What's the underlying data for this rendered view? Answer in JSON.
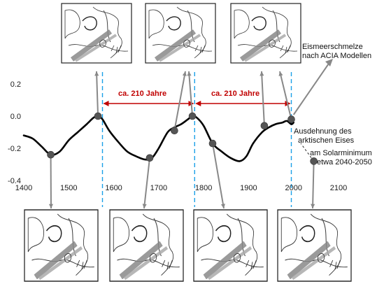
{
  "chart_data": {
    "type": "line",
    "title": "",
    "xlabel": "",
    "ylabel": "",
    "xlim": [
      1400,
      2100
    ],
    "ylim": [
      -0.4,
      0.2
    ],
    "x_ticks": [
      "1400",
      "1500",
      "1600",
      "1700",
      "1800",
      "1900",
      "2000",
      "2100"
    ],
    "y_ticks": [
      "0.2",
      "0.0",
      "-0.2",
      "-0.4"
    ],
    "grid": false,
    "series": [
      {
        "x": [
          1400,
          1420,
          1440,
          1460,
          1480,
          1500,
          1520,
          1540,
          1555,
          1565,
          1575,
          1590,
          1610,
          1630,
          1650,
          1670,
          1685,
          1700,
          1720,
          1735,
          1750,
          1765,
          1775,
          1785,
          1800,
          1820,
          1840,
          1860,
          1880,
          1895,
          1910,
          1930,
          1945,
          1960,
          1975,
          1985,
          1995,
          2000
        ],
        "values": [
          -0.12,
          -0.14,
          -0.19,
          -0.24,
          -0.22,
          -0.15,
          -0.1,
          -0.05,
          -0.01,
          0.0,
          -0.02,
          -0.09,
          -0.16,
          -0.22,
          -0.25,
          -0.27,
          -0.26,
          -0.2,
          -0.1,
          -0.07,
          -0.05,
          -0.02,
          0.0,
          -0.01,
          -0.06,
          -0.17,
          -0.22,
          -0.26,
          -0.28,
          -0.25,
          -0.17,
          -0.1,
          -0.07,
          -0.05,
          -0.04,
          -0.03,
          -0.05,
          -0.04
        ]
      }
    ],
    "marker_points": [
      {
        "x": 1460,
        "y": -0.24
      },
      {
        "x": 1565,
        "y": 0.0
      },
      {
        "x": 1680,
        "y": -0.26
      },
      {
        "x": 1735,
        "y": -0.09
      },
      {
        "x": 1775,
        "y": 0.0
      },
      {
        "x": 1820,
        "y": -0.17
      },
      {
        "x": 1935,
        "y": -0.06
      },
      {
        "x": 1995,
        "y": -0.02
      },
      {
        "x": 2045,
        "y": -0.28
      }
    ],
    "vertical_markers": [
      1575,
      1780,
      1995
    ],
    "periods": [
      {
        "from": 1575,
        "to": 1780,
        "label": "ca. 210 Jahre"
      },
      {
        "from": 1780,
        "to": 1995,
        "label": "ca. 210 Jahre"
      }
    ],
    "annotations": [
      {
        "lines": [
          "Eismeerschmelze",
          "nach ACIA Modellen"
        ]
      },
      {
        "lines": [
          "Ausdehnung des",
          "arktischen Eises",
          "am Solarminimum",
          "etwa 2040-2050"
        ]
      }
    ]
  },
  "map_panels": {
    "top": [
      "glacier-map-top-1",
      "glacier-map-top-2",
      "glacier-map-top-3"
    ],
    "bottom": [
      "ice-extent-map-bottom-1",
      "ice-extent-map-bottom-2",
      "ice-extent-map-bottom-3",
      "ice-extent-map-bottom-4"
    ]
  },
  "colors": {
    "line": "#000000",
    "marker": "#555555",
    "connector": "#888888",
    "dashed_marker": "#1aa0e8",
    "period_text": "#c00000",
    "map_water": "#9a9a9a"
  }
}
